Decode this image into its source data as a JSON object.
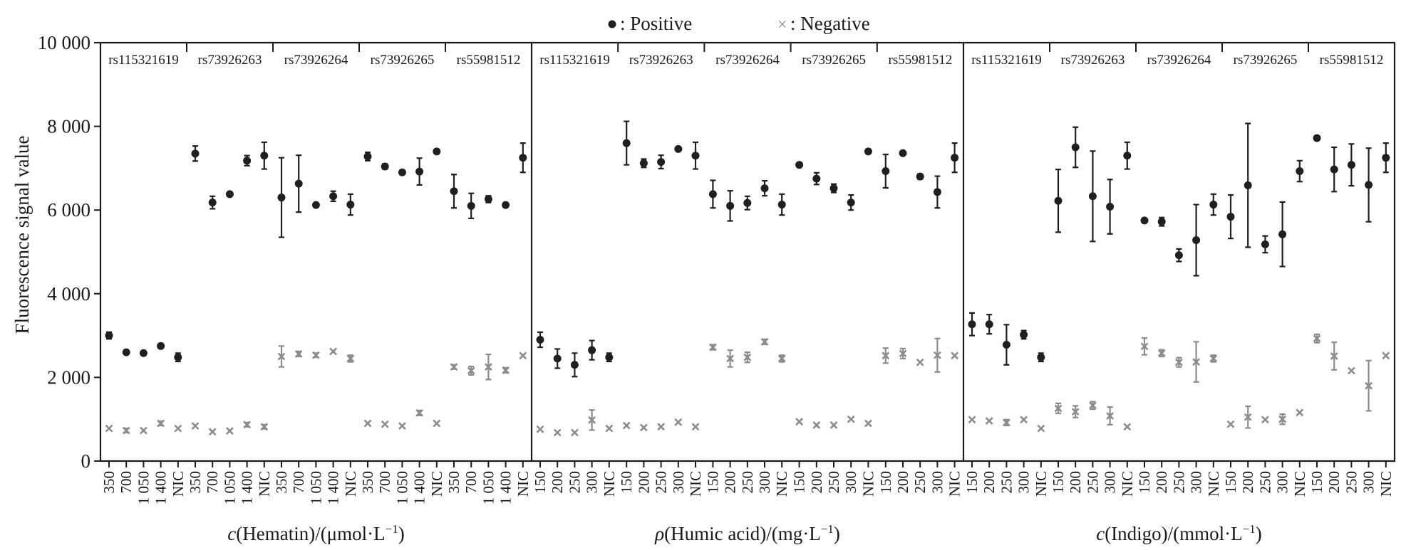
{
  "colors": {
    "positive": "#1f1f1f",
    "negative": "#8c8c8c",
    "axis": "#1a1a1a"
  },
  "legend": {
    "placement": "top-center",
    "positive": {
      "marker": "●",
      "label": ": Positive"
    },
    "negative": {
      "marker": "×",
      "label": ": Negative"
    }
  },
  "chart_data": {
    "type": "scatter",
    "ylabel": "Fluorescence signal value",
    "ylim": [
      0,
      10000
    ],
    "yticks": [
      0,
      2000,
      4000,
      6000,
      8000,
      10000
    ],
    "ytick_labels": [
      "0",
      "2 000",
      "4 000",
      "6 000",
      "8 000",
      "10 000"
    ],
    "grid": false,
    "marker_meaning": {
      "positive": "error bars are ± values",
      "negative": "error bars are ± values"
    },
    "panels": [
      {
        "xlabel_italic": "c",
        "xlabel_rest": "(Hematin)/(μmol·L",
        "xlabel_sup": "−1",
        "xlabel_close": ")",
        "groups": [
          {
            "snp": "rs115321619",
            "x": [
              "350",
              "700",
              "1 050",
              "1 400",
              "NIC"
            ],
            "positive": [
              [
                3000,
                80
              ],
              [
                2600,
                40
              ],
              [
                2580,
                40
              ],
              [
                2750,
                50
              ],
              [
                2480,
                100
              ]
            ],
            "negative": [
              [
                780,
                40
              ],
              [
                730,
                50
              ],
              [
                730,
                40
              ],
              [
                900,
                50
              ],
              [
                780,
                40
              ]
            ]
          },
          {
            "snp": "rs73926263",
            "x": [
              "350",
              "700",
              "1 050",
              "1 400",
              "NIC"
            ],
            "positive": [
              [
                7350,
                180
              ],
              [
                6180,
                150
              ],
              [
                6380,
                40
              ],
              [
                7180,
                120
              ],
              [
                7300,
                320
              ]
            ],
            "negative": [
              [
                840,
                40
              ],
              [
                700,
                40
              ],
              [
                720,
                40
              ],
              [
                870,
                50
              ],
              [
                820,
                50
              ]
            ]
          },
          {
            "snp": "rs73926264",
            "x": [
              "350",
              "700",
              "1 050",
              "1 400",
              "NIC"
            ],
            "positive": [
              [
                6300,
                950
              ],
              [
                6630,
                680
              ],
              [
                6120,
                30
              ],
              [
                6330,
                120
              ],
              [
                6130,
                250
              ]
            ],
            "negative": [
              [
                2500,
                250
              ],
              [
                2560,
                60
              ],
              [
                2530,
                50
              ],
              [
                2620,
                40
              ],
              [
                2450,
                80
              ]
            ]
          },
          {
            "snp": "rs73926265",
            "x": [
              "350",
              "700",
              "1 050",
              "1 400",
              "NIC"
            ],
            "positive": [
              [
                7280,
                100
              ],
              [
                7040,
                60
              ],
              [
                6900,
                40
              ],
              [
                6920,
                320
              ],
              [
                7400,
                50
              ]
            ],
            "negative": [
              [
                900,
                40
              ],
              [
                880,
                40
              ],
              [
                840,
                40
              ],
              [
                1150,
                60
              ],
              [
                900,
                40
              ]
            ]
          },
          {
            "snp": "rs55981512",
            "x": [
              "350",
              "700",
              "1 050",
              "1 400",
              "NIC"
            ],
            "positive": [
              [
                6450,
                400
              ],
              [
                6100,
                300
              ],
              [
                6260,
                80
              ],
              [
                6120,
                40
              ],
              [
                7250,
                350
              ]
            ],
            "negative": [
              [
                2250,
                50
              ],
              [
                2160,
                100
              ],
              [
                2250,
                300
              ],
              [
                2170,
                60
              ],
              [
                2520,
                40
              ]
            ]
          }
        ]
      },
      {
        "xlabel_italic": "ρ",
        "xlabel_rest": "(Humic acid)/(mg·L",
        "xlabel_sup": "−1",
        "xlabel_close": ")",
        "groups": [
          {
            "snp": "rs115321619",
            "x": [
              "150",
              "200",
              "250",
              "300",
              "NIC"
            ],
            "positive": [
              [
                2900,
                180
              ],
              [
                2450,
                230
              ],
              [
                2300,
                280
              ],
              [
                2650,
                230
              ],
              [
                2480,
                100
              ]
            ],
            "negative": [
              [
                760,
                40
              ],
              [
                680,
                40
              ],
              [
                680,
                40
              ],
              [
                980,
                240
              ],
              [
                780,
                40
              ]
            ]
          },
          {
            "snp": "rs73926263",
            "x": [
              "150",
              "200",
              "250",
              "300",
              "NIC"
            ],
            "positive": [
              [
                7600,
                520
              ],
              [
                7120,
                100
              ],
              [
                7150,
                160
              ],
              [
                7460,
                40
              ],
              [
                7300,
                320
              ]
            ],
            "negative": [
              [
                850,
                40
              ],
              [
                800,
                40
              ],
              [
                820,
                40
              ],
              [
                930,
                40
              ],
              [
                820,
                40
              ]
            ]
          },
          {
            "snp": "rs73926264",
            "x": [
              "150",
              "200",
              "250",
              "300",
              "NIC"
            ],
            "positive": [
              [
                6380,
                330
              ],
              [
                6100,
                360
              ],
              [
                6170,
                160
              ],
              [
                6520,
                180
              ],
              [
                6130,
                250
              ]
            ],
            "negative": [
              [
                2720,
                60
              ],
              [
                2450,
                200
              ],
              [
                2480,
                120
              ],
              [
                2850,
                60
              ],
              [
                2450,
                80
              ]
            ]
          },
          {
            "snp": "rs73926265",
            "x": [
              "150",
              "200",
              "250",
              "300",
              "NIC"
            ],
            "positive": [
              [
                7080,
                40
              ],
              [
                6750,
                140
              ],
              [
                6520,
                100
              ],
              [
                6180,
                180
              ],
              [
                7400,
                50
              ]
            ],
            "negative": [
              [
                940,
                40
              ],
              [
                860,
                40
              ],
              [
                860,
                40
              ],
              [
                1000,
                40
              ],
              [
                900,
                40
              ]
            ]
          },
          {
            "snp": "rs55981512",
            "x": [
              "150",
              "200",
              "250",
              "300",
              "NIC"
            ],
            "positive": [
              [
                6930,
                400
              ],
              [
                7360,
                40
              ],
              [
                6800,
                60
              ],
              [
                6430,
                380
              ],
              [
                7250,
                350
              ]
            ],
            "negative": [
              [
                2520,
                180
              ],
              [
                2570,
                120
              ],
              [
                2360,
                40
              ],
              [
                2530,
                400
              ],
              [
                2520,
                40
              ]
            ]
          }
        ]
      },
      {
        "xlabel_italic": "c",
        "xlabel_rest": "(Indigo)/(mmol·L",
        "xlabel_sup": "−1",
        "xlabel_close": ")",
        "groups": [
          {
            "snp": "rs115321619",
            "x": [
              "150",
              "200",
              "250",
              "300",
              "NIC"
            ],
            "positive": [
              [
                3270,
                270
              ],
              [
                3270,
                230
              ],
              [
                2780,
                480
              ],
              [
                3020,
                100
              ],
              [
                2480,
                100
              ]
            ],
            "negative": [
              [
                990,
                40
              ],
              [
                960,
                40
              ],
              [
                920,
                70
              ],
              [
                990,
                40
              ],
              [
                780,
                40
              ]
            ]
          },
          {
            "snp": "rs73926263",
            "x": [
              "150",
              "200",
              "250",
              "300",
              "NIC"
            ],
            "positive": [
              [
                6220,
                750
              ],
              [
                7500,
                480
              ],
              [
                6330,
                1080
              ],
              [
                6080,
                650
              ],
              [
                7300,
                320
              ]
            ],
            "negative": [
              [
                1260,
                120
              ],
              [
                1180,
                140
              ],
              [
                1330,
                90
              ],
              [
                1080,
                210
              ],
              [
                820,
                40
              ]
            ]
          },
          {
            "snp": "rs73926264",
            "x": [
              "150",
              "200",
              "250",
              "300",
              "NIC"
            ],
            "positive": [
              [
                5750,
                40
              ],
              [
                5720,
                100
              ],
              [
                4920,
                150
              ],
              [
                5280,
                850
              ],
              [
                6130,
                250
              ]
            ],
            "negative": [
              [
                2740,
                200
              ],
              [
                2580,
                80
              ],
              [
                2360,
                110
              ],
              [
                2370,
                480
              ],
              [
                2450,
                80
              ]
            ]
          },
          {
            "snp": "rs73926265",
            "x": [
              "150",
              "200",
              "250",
              "300",
              "NIC"
            ],
            "positive": [
              [
                5840,
                520
              ],
              [
                6590,
                1480
              ],
              [
                5180,
                200
              ],
              [
                5420,
                770
              ],
              [
                6930,
                250
              ]
            ],
            "negative": [
              [
                880,
                40
              ],
              [
                1050,
                260
              ],
              [
                990,
                40
              ],
              [
                1000,
                120
              ],
              [
                1160,
                40
              ]
            ]
          },
          {
            "snp": "rs55981512",
            "x": [
              "150",
              "200",
              "250",
              "300",
              "NIC"
            ],
            "positive": [
              [
                7720,
                40
              ],
              [
                6970,
                530
              ],
              [
                7080,
                500
              ],
              [
                6600,
                880
              ],
              [
                7250,
                350
              ]
            ],
            "negative": [
              [
                2930,
                100
              ],
              [
                2510,
                330
              ],
              [
                2160,
                40
              ],
              [
                1800,
                600
              ],
              [
                2520,
                40
              ]
            ]
          }
        ]
      }
    ]
  }
}
